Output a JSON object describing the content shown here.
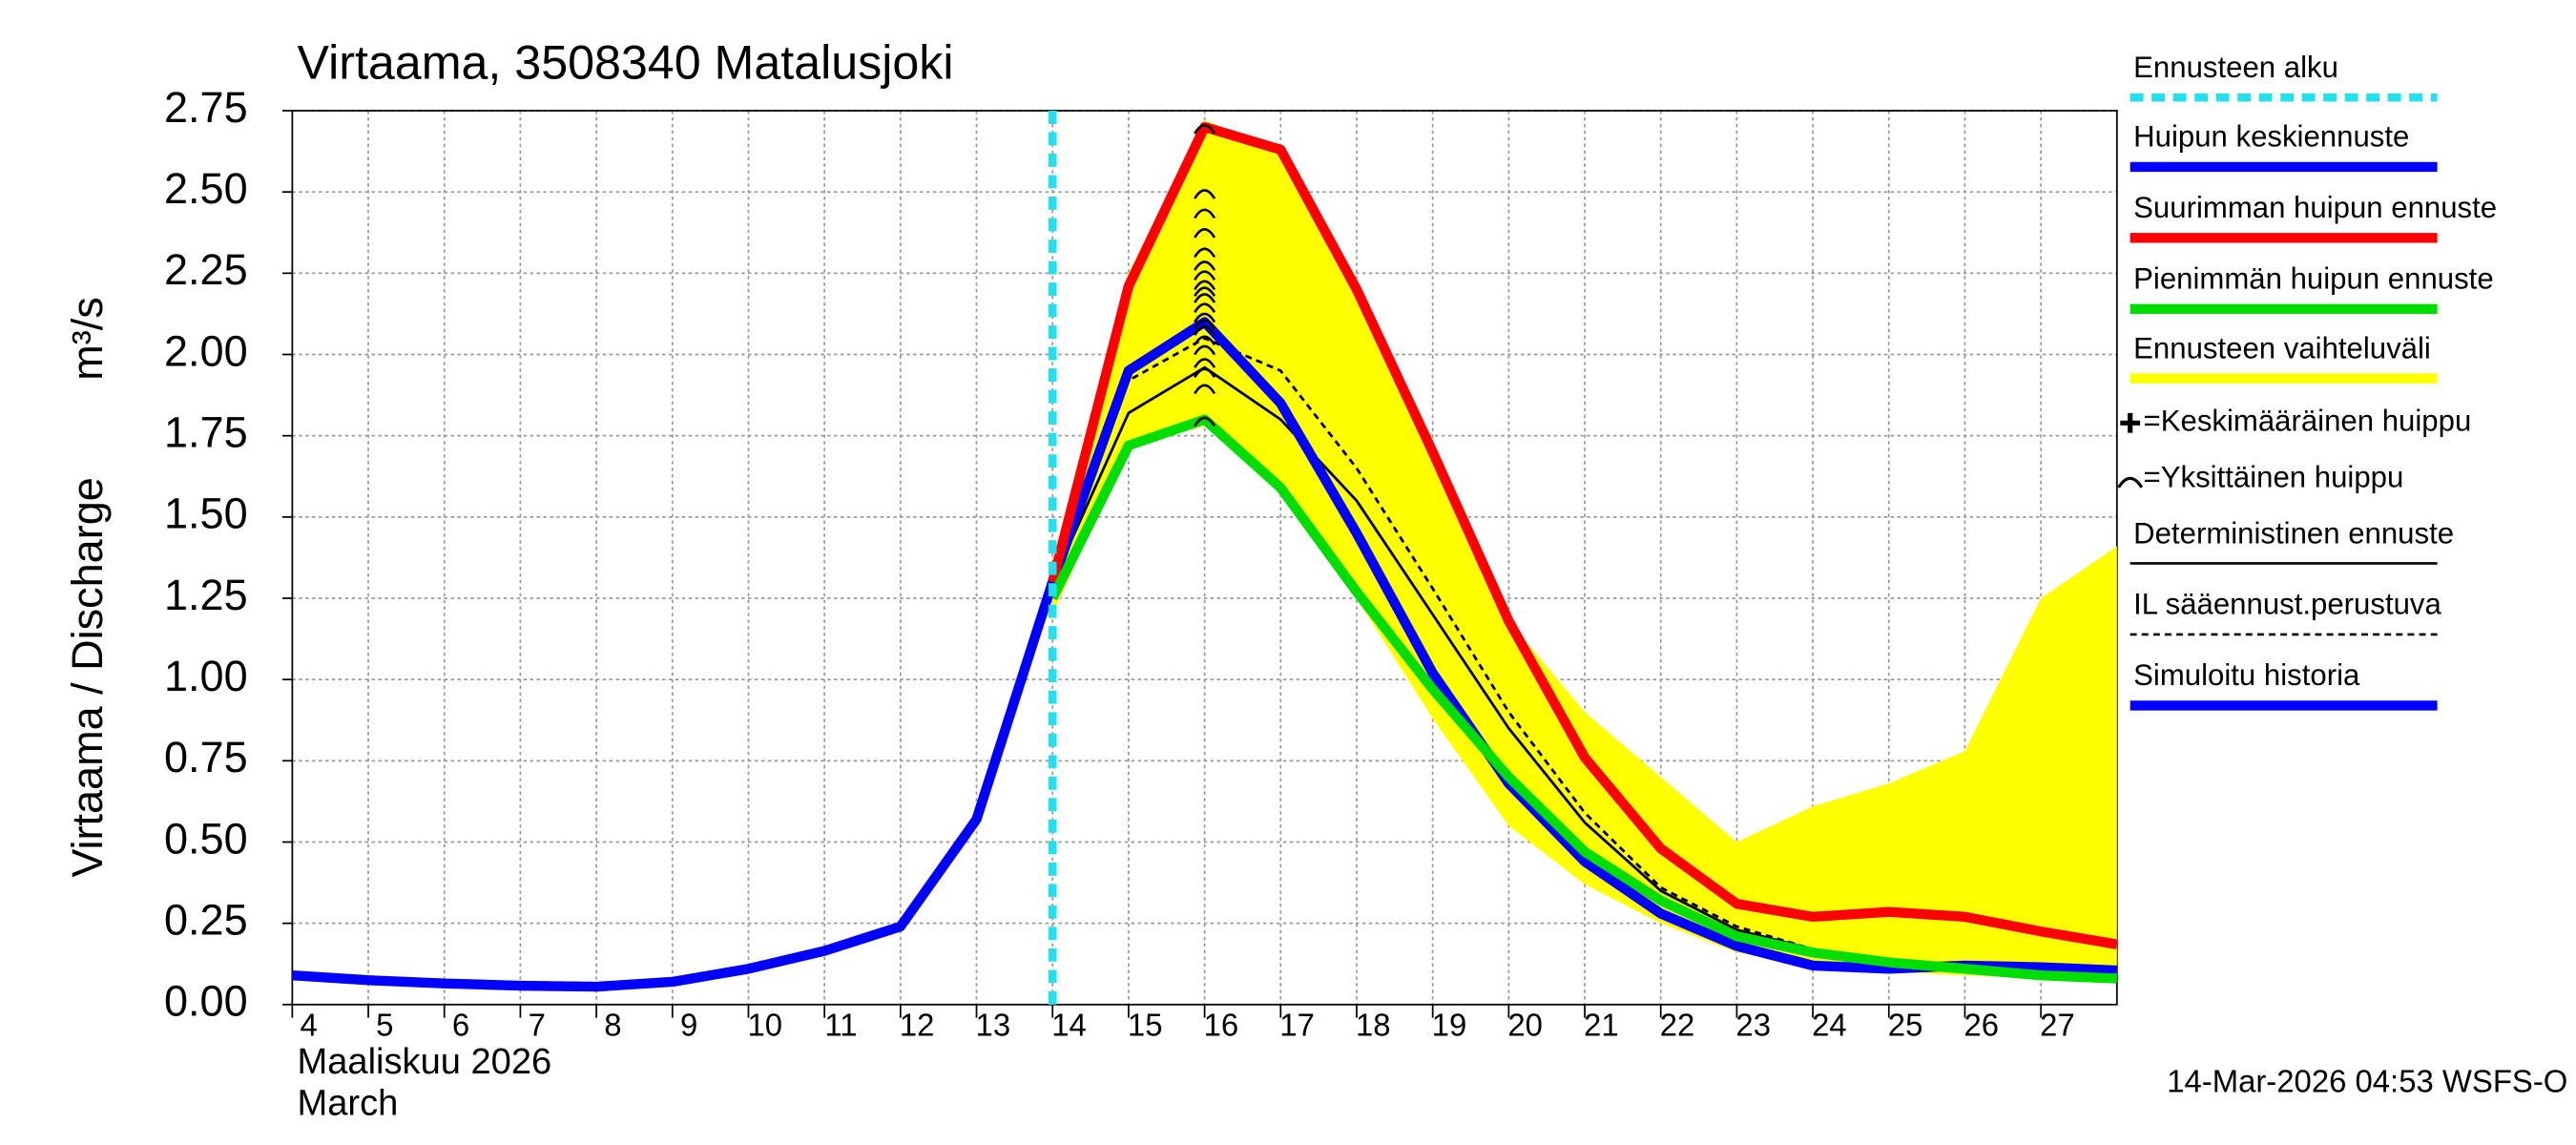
{
  "chart_data": {
    "type": "line",
    "title": "Virtaama, 3508340 Matalusjoki",
    "y_label": "Virtaama / Discharge",
    "y_unit": "m³/s",
    "x_label": "Maaliskuu 2026",
    "x_label_2": "March",
    "footer": "14-Mar-2026 04:53 WSFS-O",
    "xlim": [
      4,
      28
    ],
    "xticks": [
      4,
      5,
      6,
      7,
      8,
      9,
      10,
      11,
      12,
      13,
      14,
      15,
      16,
      17,
      18,
      19,
      20,
      21,
      22,
      23,
      24,
      25,
      26,
      27
    ],
    "ylim": [
      0,
      2.75
    ],
    "yticks": [
      {
        "value": 0,
        "label": "0.00"
      },
      0.25,
      {
        "value": 0.5,
        "label": "0.50"
      },
      0.75,
      {
        "value": 1,
        "label": "1.00"
      },
      1.25,
      {
        "value": 1.5,
        "label": "1.50"
      },
      1.75,
      {
        "value": 2,
        "label": "2.00"
      },
      2.25,
      {
        "value": 2.5,
        "label": "2.50"
      },
      2.75
    ],
    "grid": true,
    "series": [
      {
        "name": "Ennusteen alku",
        "color": "#22e0ee",
        "style": "vline",
        "x": [
          14
        ]
      },
      {
        "name": "Huipun keskiennuste",
        "color": "#0000ff",
        "style": "thick",
        "x": [
          14,
          15,
          16,
          17,
          18,
          19,
          20,
          21,
          22,
          23,
          24,
          25,
          26,
          27,
          28
        ],
        "values": [
          1.3,
          1.95,
          2.1,
          1.85,
          1.45,
          1.02,
          0.68,
          0.44,
          0.28,
          0.18,
          0.12,
          0.11,
          0.12,
          0.115,
          0.105
        ]
      },
      {
        "name": "Suurimman huipun ennuste",
        "color": "#ff0000",
        "style": "thick",
        "x": [
          14,
          15,
          16,
          17,
          18,
          19,
          20,
          21,
          22,
          23,
          24,
          25,
          26,
          27,
          28
        ],
        "values": [
          1.3,
          2.21,
          2.7,
          2.63,
          2.2,
          1.7,
          1.18,
          0.76,
          0.48,
          0.31,
          0.27,
          0.285,
          0.27,
          0.225,
          0.185
        ]
      },
      {
        "name": "Pienimmän huipun ennuste",
        "color": "#00dd00",
        "style": "thick",
        "x": [
          14,
          15,
          16,
          17,
          18,
          19,
          20,
          21,
          22,
          23,
          24,
          25,
          26,
          27,
          28
        ],
        "values": [
          1.25,
          1.72,
          1.8,
          1.59,
          1.27,
          0.97,
          0.7,
          0.47,
          0.32,
          0.21,
          0.16,
          0.13,
          0.11,
          0.09,
          0.08
        ]
      },
      {
        "name": "Ennusteen vaihteluväli",
        "color": "#ffff00",
        "style": "band",
        "x": [
          14,
          15,
          16,
          17,
          18,
          19,
          20,
          21,
          22,
          23,
          24,
          25,
          26,
          27,
          28
        ],
        "lower": [
          1.2,
          1.72,
          1.78,
          1.58,
          1.25,
          0.88,
          0.55,
          0.37,
          0.25,
          0.16,
          0.12,
          0.1,
          0.09,
          0.08,
          0.07
        ],
        "upper": [
          1.3,
          2.25,
          2.72,
          2.63,
          2.2,
          1.7,
          1.18,
          0.9,
          0.7,
          0.5,
          0.61,
          0.68,
          0.78,
          1.25,
          1.41
        ]
      },
      {
        "name": "=Keskimääräinen huippu",
        "color": "#000000",
        "style": "plus"
      },
      {
        "name": "=Yksittäinen huippu",
        "color": "#000000",
        "style": "arc",
        "x": [
          16,
          16,
          16,
          16,
          16,
          16,
          16,
          16,
          16,
          16,
          16,
          16,
          16,
          16,
          16,
          16,
          16,
          16,
          16,
          16
        ],
        "values": [
          2.7,
          2.5,
          2.44,
          2.38,
          2.32,
          2.28,
          2.25,
          2.22,
          2.2,
          2.18,
          2.15,
          2.12,
          2.1,
          2.08,
          2.05,
          2.02,
          1.98,
          1.95,
          1.9,
          1.8
        ]
      },
      {
        "name": "Deterministinen ennuste",
        "color": "#000000",
        "style": "thin",
        "x": [
          14,
          15,
          16,
          17,
          18,
          19,
          20,
          21,
          22,
          23,
          24,
          25,
          26,
          27,
          28
        ],
        "values": [
          1.3,
          1.82,
          1.96,
          1.8,
          1.55,
          1.2,
          0.85,
          0.56,
          0.35,
          0.23,
          0.17,
          0.13,
          0.11,
          0.09,
          0.08
        ]
      },
      {
        "name": "IL sääennust.perustuva",
        "color": "#000000",
        "style": "dashed",
        "x": [
          14,
          15,
          16,
          17,
          18,
          19,
          20,
          21,
          22,
          23,
          24,
          25,
          26,
          27,
          28
        ],
        "values": [
          1.3,
          1.92,
          2.05,
          1.95,
          1.65,
          1.28,
          0.9,
          0.59,
          0.36,
          0.24,
          0.17,
          0.13,
          0.11,
          0.09,
          0.08
        ]
      },
      {
        "name": "Simuloitu historia",
        "color": "#0000ff",
        "style": "thick",
        "x": [
          4,
          5,
          6,
          7,
          8,
          9,
          10,
          11,
          12,
          13,
          14
        ],
        "values": [
          0.09,
          0.075,
          0.065,
          0.058,
          0.055,
          0.07,
          0.11,
          0.165,
          0.24,
          0.57,
          1.3
        ]
      }
    ]
  }
}
